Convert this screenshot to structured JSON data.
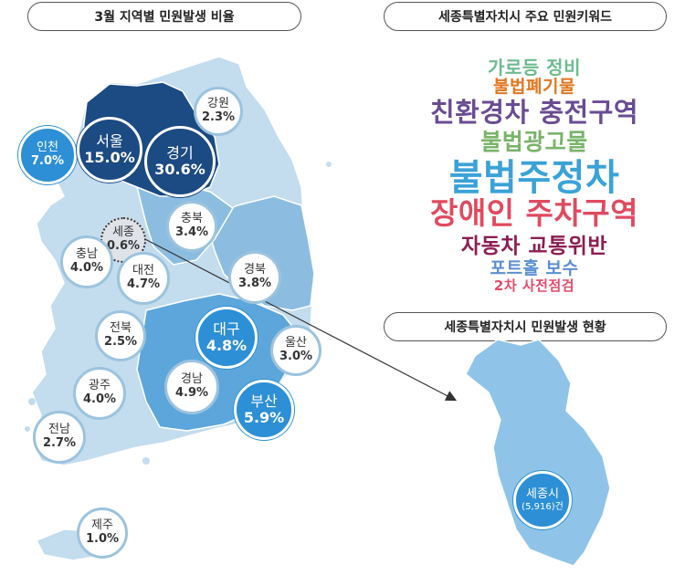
{
  "header_left": "3월 지역별 민원발생 비율",
  "header_right_top": "세종특별자치시 주요 민원키워드",
  "header_right_bottom": "세종특별자치시 민원발생 현황",
  "regions": [
    {
      "key": "gangwon",
      "name": "강원",
      "pct": "2.3%",
      "style": "white"
    },
    {
      "key": "incheon",
      "name": "인천",
      "pct": "7.0%",
      "style": "blue"
    },
    {
      "key": "seoul",
      "name": "서울",
      "pct": "15.0%",
      "style": "navy"
    },
    {
      "key": "gyeonggi",
      "name": "경기",
      "pct": "30.6%",
      "style": "navy"
    },
    {
      "key": "chungbuk",
      "name": "충북",
      "pct": "3.4%",
      "style": "white"
    },
    {
      "key": "sejong",
      "name": "세종",
      "pct": "0.6%",
      "style": "dot"
    },
    {
      "key": "chungnam",
      "name": "충남",
      "pct": "4.0%",
      "style": "white"
    },
    {
      "key": "daejeon",
      "name": "대전",
      "pct": "4.7%",
      "style": "white"
    },
    {
      "key": "gyeongbuk",
      "name": "경북",
      "pct": "3.8%",
      "style": "white"
    },
    {
      "key": "jeonbuk",
      "name": "전북",
      "pct": "2.5%",
      "style": "white"
    },
    {
      "key": "daegu",
      "name": "대구",
      "pct": "4.8%",
      "style": "blue"
    },
    {
      "key": "ulsan",
      "name": "울산",
      "pct": "3.0%",
      "style": "white"
    },
    {
      "key": "gwangju",
      "name": "광주",
      "pct": "4.0%",
      "style": "white"
    },
    {
      "key": "gyeongnam",
      "name": "경남",
      "pct": "4.9%",
      "style": "white"
    },
    {
      "key": "busan",
      "name": "부산",
      "pct": "5.9%",
      "style": "blue"
    },
    {
      "key": "jeonnam",
      "name": "전남",
      "pct": "2.7%",
      "style": "white"
    },
    {
      "key": "jeju",
      "name": "제주",
      "pct": "1.0%",
      "style": "white"
    }
  ],
  "keywords": [
    {
      "text": "가로등 정비",
      "color": "#6dbb8f"
    },
    {
      "text": "불법폐기물",
      "color": "#e2761f"
    },
    {
      "text": "친환경차 충전구역",
      "color": "#6a4c93"
    },
    {
      "text": "불법광고물",
      "color": "#7ab36a"
    },
    {
      "text": "불법주정차",
      "color": "#3aa2d8"
    },
    {
      "text": "장애인 주차구역",
      "color": "#e04a5f"
    },
    {
      "text": "자동차 교통위반",
      "color": "#8c1d52"
    },
    {
      "text": "포트홀 보수",
      "color": "#5b8fd1"
    },
    {
      "text": "2차 사전점검",
      "color": "#e24a6a"
    }
  ],
  "sejong_detail": {
    "name": "세종시",
    "count": "(5,916)건"
  },
  "colors": {
    "navy": "#1c4a82",
    "blue": "#2d8fd5",
    "light": "#bcd9ec",
    "mid": "#8cbde0",
    "sejong_map": "#8fc4e8"
  }
}
